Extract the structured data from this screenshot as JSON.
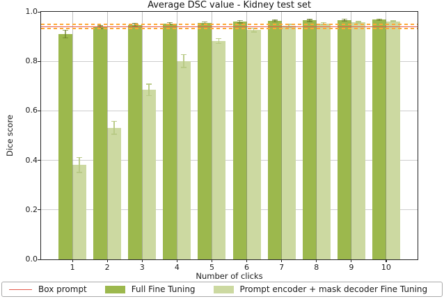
{
  "chart_data": {
    "type": "bar",
    "title": "Average DSC value - Kidney test set",
    "xlabel": "Number of clicks",
    "ylabel": "Dice score",
    "ylim": [
      0.0,
      1.0
    ],
    "xlim": [
      0.1,
      10.9
    ],
    "yticks": [
      0.0,
      0.2,
      0.4,
      0.6,
      0.8,
      1.0
    ],
    "grid": true,
    "legend_position": "bottom",
    "categories": [
      "1",
      "2",
      "3",
      "4",
      "5",
      "6",
      "7",
      "8",
      "9",
      "10"
    ],
    "bar_width_data_units": 0.4,
    "series": [
      {
        "name": "Full Fine Tuning",
        "color": "#9cb84d",
        "error_color": "rgba(109,130,44,0.7)",
        "values": [
          0.91,
          0.938,
          0.947,
          0.952,
          0.955,
          0.96,
          0.963,
          0.965,
          0.967,
          0.968
        ],
        "errors": [
          0.018,
          0.008,
          0.008,
          0.006,
          0.007,
          0.007,
          0.006,
          0.006,
          0.005,
          0.005
        ]
      },
      {
        "name": "Prompt encoder + mask decoder Fine Tuning",
        "color": "#ccd9a1",
        "error_color": "rgba(183,201,133,0.95)",
        "values": [
          0.381,
          0.531,
          0.685,
          0.801,
          0.882,
          0.926,
          0.943,
          0.953,
          0.958,
          0.962
        ],
        "errors": [
          0.032,
          0.028,
          0.025,
          0.028,
          0.012,
          0.01,
          0.008,
          0.006,
          0.005,
          0.004
        ]
      }
    ],
    "reference_line": {
      "label": "Box prompt",
      "value": 0.94,
      "color": "#e4584a",
      "band_upper": 0.949,
      "band_lower": 0.932,
      "band_color": "#ffa733",
      "band_style": "dashed"
    },
    "style": {
      "gridline_color": "#cdcdcd",
      "vertical_gridline_color": "rgba(127,127,127,0.5)",
      "spine_color": "#222222"
    }
  }
}
